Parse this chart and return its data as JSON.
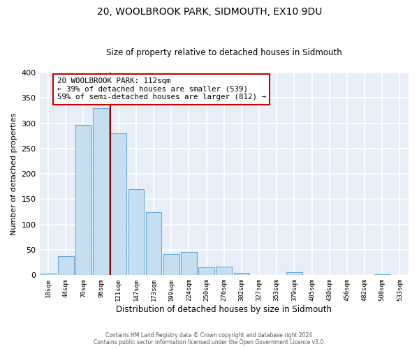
{
  "title": "20, WOOLBROOK PARK, SIDMOUTH, EX10 9DU",
  "subtitle": "Size of property relative to detached houses in Sidmouth",
  "xlabel": "Distribution of detached houses by size in Sidmouth",
  "ylabel": "Number of detached properties",
  "bar_labels": [
    "18sqm",
    "44sqm",
    "70sqm",
    "96sqm",
    "121sqm",
    "147sqm",
    "173sqm",
    "199sqm",
    "224sqm",
    "250sqm",
    "276sqm",
    "302sqm",
    "327sqm",
    "353sqm",
    "379sqm",
    "405sqm",
    "430sqm",
    "456sqm",
    "482sqm",
    "508sqm",
    "533sqm"
  ],
  "bar_heights": [
    3,
    37,
    296,
    330,
    280,
    170,
    124,
    42,
    46,
    16,
    17,
    5,
    0,
    0,
    6,
    0,
    0,
    0,
    0,
    2,
    0
  ],
  "bar_color": "#c5dff0",
  "bar_edge_color": "#6aaad4",
  "property_line_color": "#8b0000",
  "annotation_text": "20 WOOLBROOK PARK: 112sqm\n← 39% of detached houses are smaller (539)\n59% of semi-detached houses are larger (812) →",
  "annotation_box_color": "white",
  "annotation_box_edge_color": "#cc0000",
  "ylim": [
    0,
    400
  ],
  "yticks": [
    0,
    50,
    100,
    150,
    200,
    250,
    300,
    350,
    400
  ],
  "background_color": "#e8eef8",
  "grid_color": "#d0d8e8",
  "footer_line1": "Contains HM Land Registry data © Crown copyright and database right 2024.",
  "footer_line2": "Contains public sector information licensed under the Open Government Licence v3.0."
}
